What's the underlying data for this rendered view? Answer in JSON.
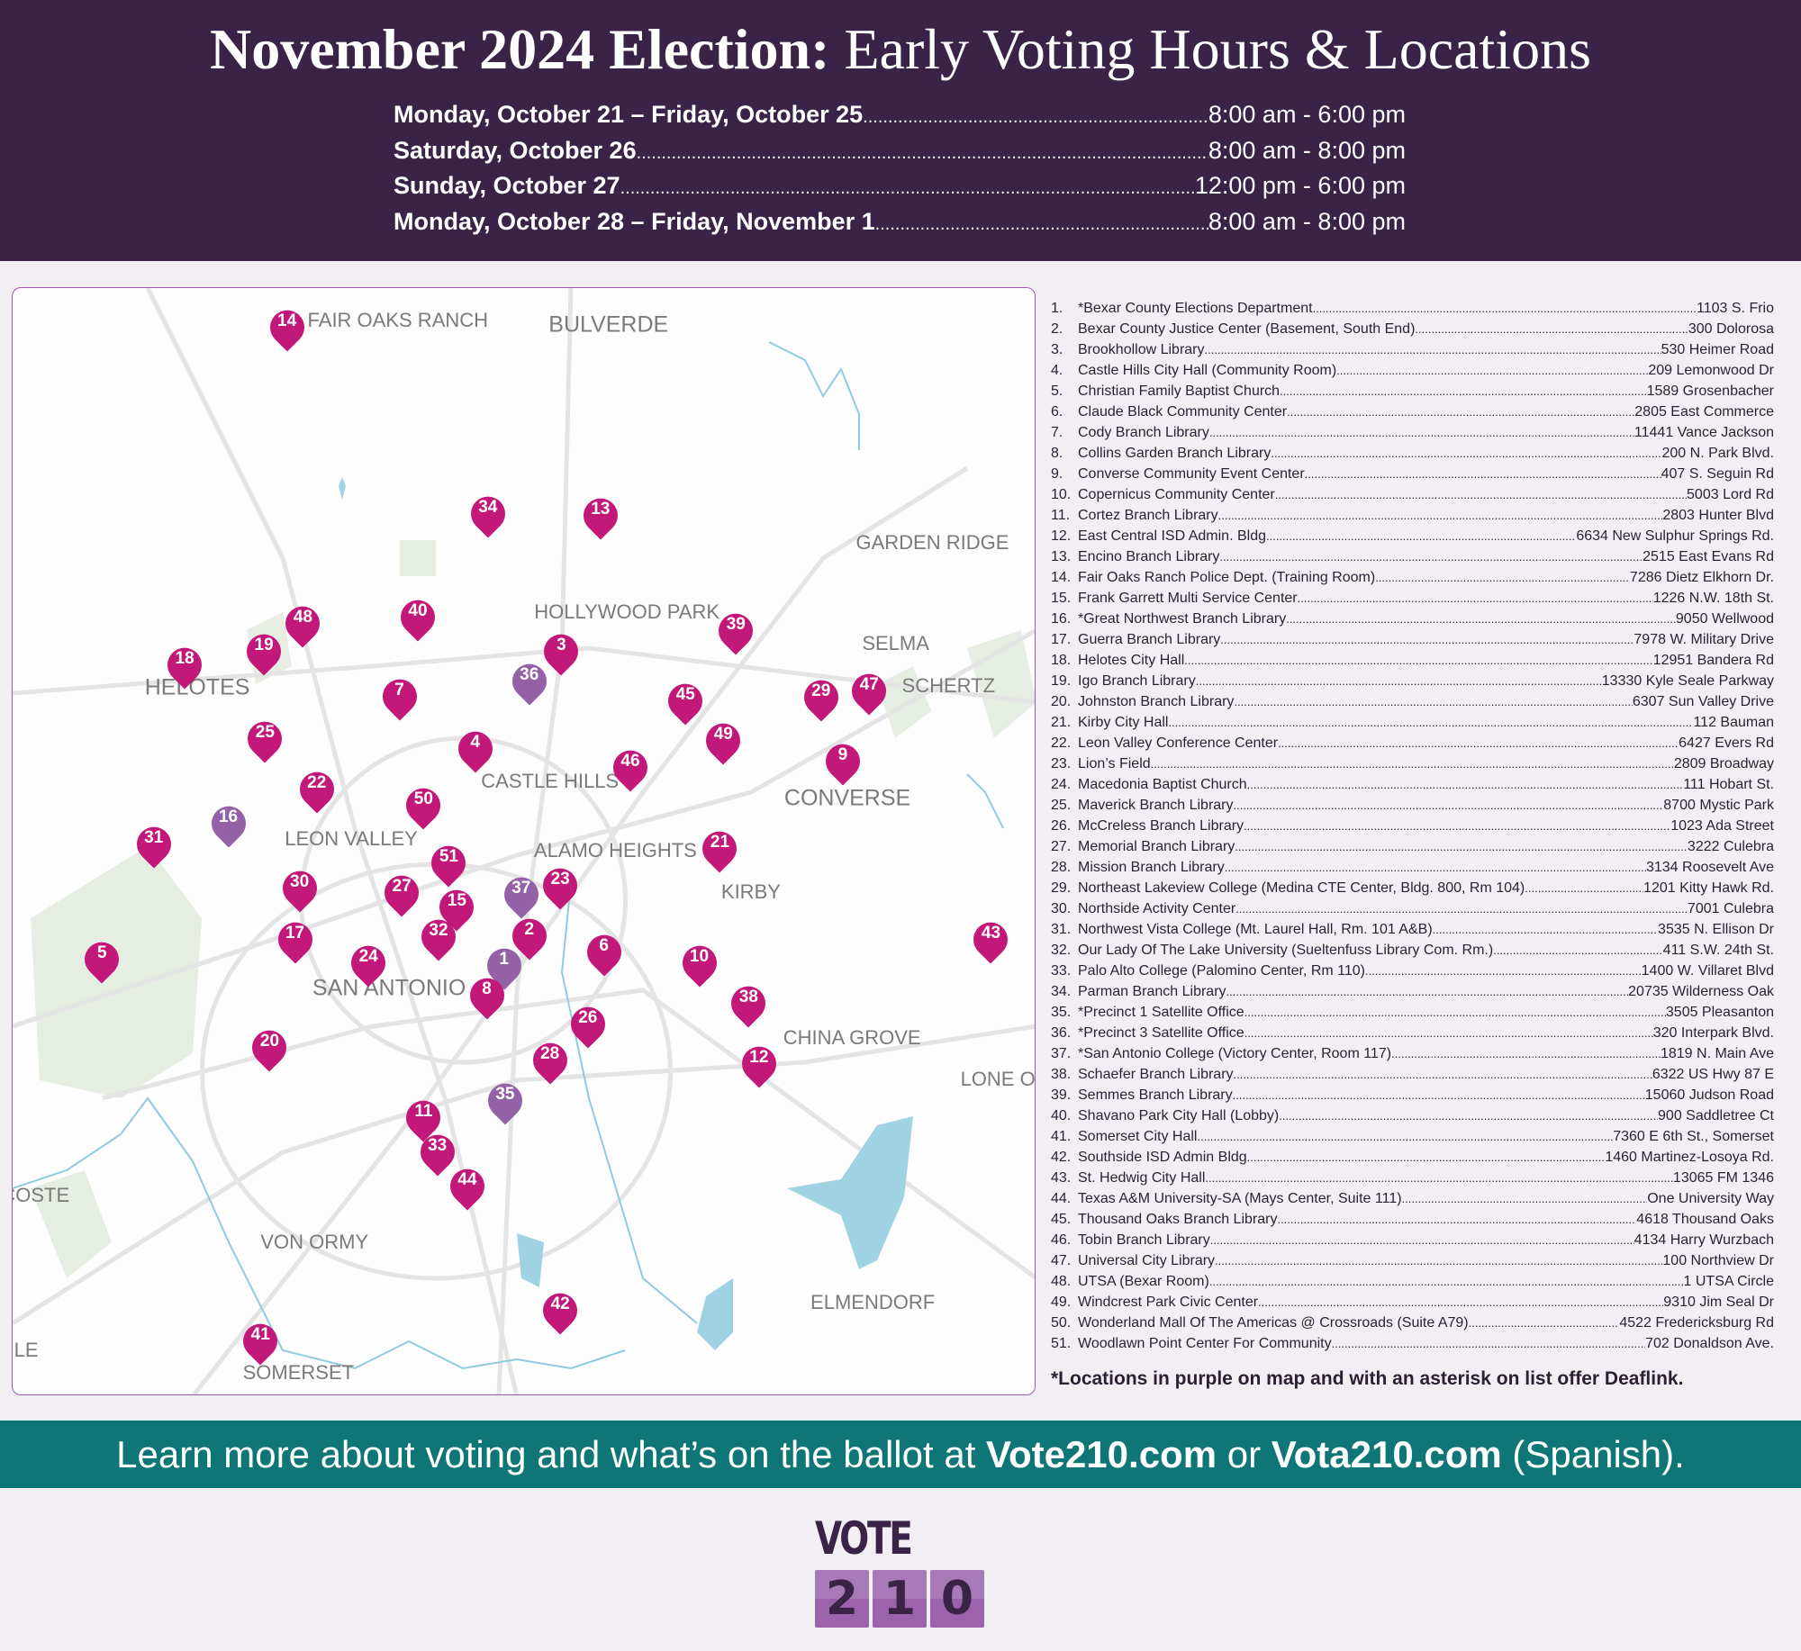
{
  "header": {
    "title_bold": "November 2024 Election:",
    "title_rest": " Early Voting Hours & Locations",
    "hours": [
      {
        "days": "Monday, October 21 – Friday, October 25",
        "time": "8:00 am - 6:00 pm"
      },
      {
        "days": "Saturday, October 26",
        "time": "8:00 am - 8:00 pm"
      },
      {
        "days": "Sunday, October 27",
        "time": "12:00 pm - 6:00 pm"
      },
      {
        "days": "Monday, October 28 – Friday, November 1",
        "time": "8:00 am - 8:00 pm"
      }
    ]
  },
  "colors": {
    "header": "#3b2347",
    "pin_standard": "#c2187a",
    "pin_deaflink": "#9461a6",
    "banner": "#0e7676",
    "logo_box": "#a36fb1"
  },
  "map": {
    "cities": [
      "FAIR OAKS RANCH",
      "BULVERDE",
      "GARDEN RIDGE",
      "HOLLYWOOD PARK",
      "SELMA",
      "SCHERTZ",
      "HELOTES",
      "CASTLE HILLS",
      "CONVERSE",
      "LEON VALLEY",
      "ALAMO HEIGHTS",
      "KIRBY",
      "SAN ANTONIO",
      "CHINA GROVE",
      "LONE O",
      "COSTE",
      "VON ORMY",
      "ELMENDORF",
      "SOMERSET",
      "LE"
    ],
    "deaflink_pins": [
      "1",
      "16",
      "35",
      "36",
      "37"
    ]
  },
  "locations": [
    {
      "n": "1.",
      "name": "*Bexar County Elections Department",
      "addr": "1103 S. Frio"
    },
    {
      "n": "2.",
      "name": "Bexar County Justice Center (Basement, South End)",
      "addr": "300 Dolorosa"
    },
    {
      "n": "3.",
      "name": "Brookhollow Library",
      "addr": "530 Heimer Road"
    },
    {
      "n": "4.",
      "name": "Castle Hills City Hall (Community Room)",
      "addr": "209 Lemonwood Dr"
    },
    {
      "n": "5.",
      "name": "Christian Family Baptist Church",
      "addr": "1589 Grosenbacher"
    },
    {
      "n": "6.",
      "name": "Claude Black Community Center",
      "addr": "2805 East Commerce"
    },
    {
      "n": "7.",
      "name": "Cody Branch Library",
      "addr": "11441 Vance Jackson"
    },
    {
      "n": "8.",
      "name": "Collins Garden Branch Library",
      "addr": "200 N. Park Blvd."
    },
    {
      "n": "9.",
      "name": "Converse Community Event Center",
      "addr": "407 S. Seguin Rd"
    },
    {
      "n": "10.",
      "name": "Copernicus Community Center",
      "addr": "5003 Lord Rd"
    },
    {
      "n": "11.",
      "name": "Cortez Branch Library",
      "addr": "2803 Hunter Blvd"
    },
    {
      "n": "12.",
      "name": "East Central ISD Admin. Bldg",
      "addr": "6634 New Sulphur Springs Rd."
    },
    {
      "n": "13.",
      "name": "Encino Branch Library",
      "addr": "2515 East Evans Rd"
    },
    {
      "n": "14.",
      "name": "Fair Oaks Ranch Police Dept. (Training Room)",
      "addr": "7286 Dietz Elkhorn Dr."
    },
    {
      "n": "15.",
      "name": "Frank Garrett Multi Service Center",
      "addr": "1226 N.W. 18th St."
    },
    {
      "n": "16.",
      "name": "*Great Northwest Branch Library",
      "addr": "9050 Wellwood"
    },
    {
      "n": "17.",
      "name": "Guerra Branch Library",
      "addr": "7978 W. Military Drive"
    },
    {
      "n": "18.",
      "name": "Helotes City Hall",
      "addr": "12951 Bandera Rd"
    },
    {
      "n": "19.",
      "name": "Igo Branch Library",
      "addr": "13330 Kyle Seale Parkway"
    },
    {
      "n": "20.",
      "name": "Johnston Branch Library",
      "addr": "6307 Sun Valley Drive"
    },
    {
      "n": "21.",
      "name": "Kirby City Hall",
      "addr": "112 Bauman"
    },
    {
      "n": "22.",
      "name": "Leon Valley Conference Center",
      "addr": "6427 Evers Rd"
    },
    {
      "n": "23.",
      "name": "Lion’s Field ",
      "addr": "2809 Broadway"
    },
    {
      "n": "24.",
      "name": "Macedonia Baptist Church",
      "addr": "111 Hobart St."
    },
    {
      "n": "25.",
      "name": "Maverick Branch Library",
      "addr": "8700 Mystic Park"
    },
    {
      "n": "26.",
      "name": "McCreless Branch Library",
      "addr": "1023 Ada Street"
    },
    {
      "n": "27.",
      "name": "Memorial Branch Library",
      "addr": "3222 Culebra"
    },
    {
      "n": "28.",
      "name": "Mission Branch Library",
      "addr": "3134 Roosevelt Ave"
    },
    {
      "n": "29.",
      "name": "Northeast Lakeview College (Medina CTE Center, Bldg. 800, Rm 104)",
      "addr": "1201 Kitty Hawk Rd."
    },
    {
      "n": "30.",
      "name": "Northside Activity Center",
      "addr": "7001 Culebra"
    },
    {
      "n": "31.",
      "name": "Northwest Vista College (Mt. Laurel Hall, Rm. 101 A&B)",
      "addr": "3535 N. Ellison Dr"
    },
    {
      "n": "32.",
      "name": "Our Lady Of The Lake University (Sueltenfuss Library Com. Rm.)",
      "addr": "411 S.W. 24th St."
    },
    {
      "n": "33.",
      "name": "Palo Alto College (Palomino Center, Rm 110)",
      "addr": "1400 W. Villaret Blvd"
    },
    {
      "n": "34.",
      "name": "Parman Branch Library",
      "addr": "20735 Wilderness Oak"
    },
    {
      "n": "35.",
      "name": "*Precinct 1 Satellite Office",
      "addr": "3505 Pleasanton"
    },
    {
      "n": "36.",
      "name": "*Precinct 3 Satellite Office",
      "addr": "320 Interpark Blvd."
    },
    {
      "n": "37.",
      "name": "*San Antonio College (Victory Center, Room 117)",
      "addr": "1819 N. Main Ave"
    },
    {
      "n": "38.",
      "name": "Schaefer Branch Library",
      "addr": "6322 US Hwy 87 E"
    },
    {
      "n": "39.",
      "name": "Semmes Branch Library",
      "addr": "15060 Judson Road"
    },
    {
      "n": "40.",
      "name": "Shavano Park City Hall (Lobby)",
      "addr": "900 Saddletree Ct"
    },
    {
      "n": "41.",
      "name": "Somerset City Hall",
      "addr": "7360 E 6th St., Somerset"
    },
    {
      "n": "42.",
      "name": "Southside ISD Admin Bldg",
      "addr": "1460 Martinez-Losoya Rd."
    },
    {
      "n": "43.",
      "name": "St. Hedwig City Hall",
      "addr": "13065 FM 1346"
    },
    {
      "n": "44.",
      "name": "Texas A&M University-SA (Mays Center, Suite 111)",
      "addr": "One University Way"
    },
    {
      "n": "45.",
      "name": "Thousand Oaks Branch Library",
      "addr": "4618 Thousand Oaks"
    },
    {
      "n": "46.",
      "name": "Tobin Branch Library",
      "addr": "4134 Harry Wurzbach"
    },
    {
      "n": "47.",
      "name": "Universal City Library",
      "addr": "100 Northview Dr"
    },
    {
      "n": "48.",
      "name": "UTSA (Bexar Room)",
      "addr": "1 UTSA Circle"
    },
    {
      "n": "49.",
      "name": "Windcrest Park Civic Center",
      "addr": "9310 Jim Seal Dr"
    },
    {
      "n": "50.",
      "name": "Wonderland Mall Of The Americas @ Crossroads (Suite A79)",
      "addr": "4522 Fredericksburg Rd"
    },
    {
      "n": "51.",
      "name": "Woodlawn Point Center For Community",
      "addr": "702 Donaldson Ave."
    }
  ],
  "note": "*Locations in purple on map and with an asterisk on list offer Deaflink.",
  "banner": {
    "pre": "Learn more about voting and what’s on the ballot at ",
    "site1": "Vote210.com",
    "mid": " or ",
    "site2": "Vota210.com",
    "post": " (Spanish)."
  },
  "logo": {
    "word": "VOTE",
    "digits": [
      "2",
      "1",
      "0"
    ]
  }
}
